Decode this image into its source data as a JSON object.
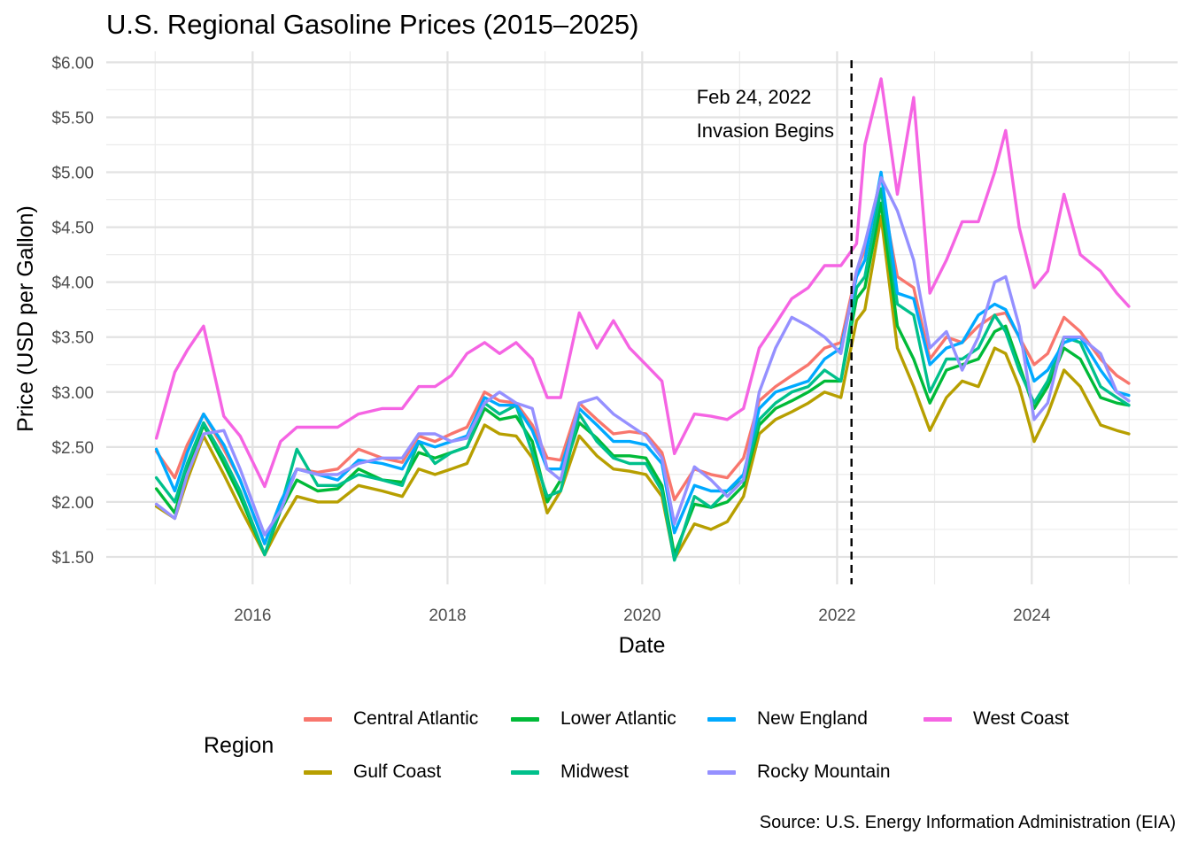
{
  "chart_data": {
    "type": "line",
    "title": "U.S. Regional Gasoline Prices (2015–2025)",
    "xlabel": "Date",
    "ylabel": "Price (USD per Gallon)",
    "caption": "Source: U.S. Energy Information Administration (EIA)",
    "legend_title": "Region",
    "legend_position": "bottom",
    "grid": true,
    "xlim": [
      "2014-07-01",
      "2025-07-01"
    ],
    "ylim": [
      1.25,
      6.1
    ],
    "x_ticks": [
      "2016-01-01",
      "2018-01-01",
      "2020-01-01",
      "2022-01-01",
      "2024-01-01"
    ],
    "x_tick_labels": [
      "2016",
      "2018",
      "2020",
      "2022",
      "2024"
    ],
    "y_ticks": [
      1.5,
      2.0,
      2.5,
      3.0,
      3.5,
      4.0,
      4.5,
      5.0,
      5.5,
      6.0
    ],
    "y_tick_labels": [
      "$1.50",
      "$2.00",
      "$2.50",
      "$3.00",
      "$3.50",
      "$4.00",
      "$4.50",
      "$5.00",
      "$5.50",
      "$6.00"
    ],
    "annotation": {
      "date": "2022-02-24",
      "line_style": "dashed",
      "label_line1": "Feb 24, 2022",
      "label_line2": "Invasion Begins"
    },
    "x": [
      "2015-01-05",
      "2015-03-15",
      "2015-05-01",
      "2015-07-01",
      "2015-09-15",
      "2015-11-15",
      "2016-02-15",
      "2016-04-15",
      "2016-06-15",
      "2016-09-01",
      "2016-11-15",
      "2017-02-01",
      "2017-05-01",
      "2017-07-15",
      "2017-09-15",
      "2017-11-15",
      "2018-01-15",
      "2018-03-15",
      "2018-05-20",
      "2018-07-15",
      "2018-09-15",
      "2018-11-15",
      "2019-01-10",
      "2019-03-01",
      "2019-05-10",
      "2019-07-15",
      "2019-09-15",
      "2019-11-15",
      "2020-01-15",
      "2020-03-15",
      "2020-05-01",
      "2020-07-15",
      "2020-09-15",
      "2020-11-15",
      "2021-01-15",
      "2021-03-15",
      "2021-05-15",
      "2021-07-15",
      "2021-09-15",
      "2021-11-15",
      "2022-01-15",
      "2022-03-15",
      "2022-04-15",
      "2022-06-15",
      "2022-08-15",
      "2022-10-15",
      "2022-12-15",
      "2023-02-15",
      "2023-04-15",
      "2023-06-15",
      "2023-08-15",
      "2023-09-25",
      "2023-11-15",
      "2024-01-10",
      "2024-03-01",
      "2024-05-01",
      "2024-07-01",
      "2024-09-15",
      "2024-11-15",
      "2024-12-30"
    ],
    "series": [
      {
        "name": "Central Atlantic",
        "color": "#F8766D",
        "values": [
          2.46,
          2.22,
          2.52,
          2.8,
          2.48,
          2.2,
          1.62,
          2.0,
          2.3,
          2.27,
          2.3,
          2.48,
          2.4,
          2.36,
          2.6,
          2.55,
          2.62,
          2.68,
          3.0,
          2.92,
          2.9,
          2.7,
          2.4,
          2.38,
          2.9,
          2.75,
          2.62,
          2.64,
          2.62,
          2.45,
          2.02,
          2.3,
          2.25,
          2.22,
          2.4,
          2.92,
          3.05,
          3.15,
          3.25,
          3.4,
          3.45,
          4.1,
          4.3,
          4.85,
          4.05,
          3.95,
          3.3,
          3.5,
          3.45,
          3.6,
          3.7,
          3.72,
          3.5,
          3.25,
          3.35,
          3.68,
          3.55,
          3.3,
          3.15,
          3.08
        ]
      },
      {
        "name": "Gulf Coast",
        "color": "#B79F00",
        "values": [
          1.96,
          1.85,
          2.2,
          2.6,
          2.25,
          1.95,
          1.52,
          1.8,
          2.05,
          2.0,
          2.0,
          2.15,
          2.1,
          2.05,
          2.3,
          2.25,
          2.3,
          2.35,
          2.7,
          2.62,
          2.6,
          2.4,
          1.9,
          2.1,
          2.6,
          2.42,
          2.3,
          2.28,
          2.25,
          2.05,
          1.48,
          1.8,
          1.75,
          1.82,
          2.05,
          2.62,
          2.75,
          2.82,
          2.9,
          3.0,
          2.95,
          3.65,
          3.75,
          4.6,
          3.4,
          3.05,
          2.65,
          2.95,
          3.1,
          3.05,
          3.4,
          3.35,
          3.05,
          2.55,
          2.8,
          3.2,
          3.05,
          2.7,
          2.65,
          2.62
        ]
      },
      {
        "name": "Lower Atlantic",
        "color": "#00BA38",
        "values": [
          2.12,
          1.9,
          2.3,
          2.7,
          2.35,
          2.05,
          1.52,
          1.92,
          2.2,
          2.1,
          2.12,
          2.3,
          2.2,
          2.18,
          2.45,
          2.4,
          2.45,
          2.5,
          2.85,
          2.75,
          2.78,
          2.55,
          2.0,
          2.2,
          2.72,
          2.58,
          2.42,
          2.42,
          2.4,
          2.15,
          1.52,
          1.98,
          1.95,
          2.0,
          2.15,
          2.7,
          2.85,
          2.92,
          3.0,
          3.1,
          3.1,
          3.85,
          3.95,
          4.72,
          3.6,
          3.3,
          2.9,
          3.2,
          3.25,
          3.3,
          3.55,
          3.6,
          3.25,
          2.85,
          3.05,
          3.4,
          3.3,
          2.95,
          2.9,
          2.88
        ]
      },
      {
        "name": "Midwest",
        "color": "#00C08B",
        "values": [
          2.22,
          2.0,
          2.35,
          2.72,
          2.4,
          2.1,
          1.52,
          1.95,
          2.48,
          2.15,
          2.15,
          2.25,
          2.2,
          2.15,
          2.55,
          2.35,
          2.45,
          2.5,
          2.9,
          2.8,
          2.88,
          2.45,
          2.05,
          2.1,
          2.8,
          2.55,
          2.4,
          2.35,
          2.35,
          2.1,
          1.47,
          2.05,
          1.95,
          2.1,
          2.2,
          2.75,
          2.9,
          3.0,
          3.05,
          3.2,
          3.1,
          3.95,
          4.05,
          4.85,
          3.8,
          3.7,
          3.0,
          3.3,
          3.3,
          3.4,
          3.7,
          3.55,
          3.2,
          2.9,
          3.1,
          3.5,
          3.45,
          3.05,
          2.95,
          2.88
        ]
      },
      {
        "name": "New England",
        "color": "#00A9FF",
        "values": [
          2.48,
          2.1,
          2.45,
          2.8,
          2.52,
          2.2,
          1.62,
          2.0,
          2.3,
          2.25,
          2.2,
          2.38,
          2.35,
          2.3,
          2.55,
          2.5,
          2.55,
          2.6,
          2.95,
          2.88,
          2.88,
          2.65,
          2.3,
          2.3,
          2.85,
          2.7,
          2.55,
          2.55,
          2.52,
          2.35,
          1.72,
          2.15,
          2.1,
          2.1,
          2.25,
          2.85,
          3.0,
          3.05,
          3.1,
          3.3,
          3.4,
          4.05,
          4.2,
          5.0,
          3.9,
          3.85,
          3.25,
          3.4,
          3.45,
          3.7,
          3.8,
          3.75,
          3.5,
          3.1,
          3.2,
          3.45,
          3.5,
          3.2,
          3.0,
          2.97
        ]
      },
      {
        "name": "Rocky Mountain",
        "color": "#9590FF",
        "values": [
          1.98,
          1.85,
          2.25,
          2.62,
          2.65,
          2.3,
          1.7,
          1.92,
          2.3,
          2.25,
          2.25,
          2.35,
          2.4,
          2.4,
          2.62,
          2.62,
          2.55,
          2.58,
          2.9,
          3.0,
          2.9,
          2.85,
          2.3,
          2.2,
          2.9,
          2.95,
          2.8,
          2.7,
          2.6,
          2.4,
          1.8,
          2.32,
          2.2,
          2.05,
          2.2,
          3.0,
          3.4,
          3.68,
          3.6,
          3.5,
          3.35,
          4.1,
          4.35,
          4.95,
          4.65,
          4.2,
          3.4,
          3.55,
          3.2,
          3.5,
          4.0,
          4.05,
          3.6,
          2.75,
          2.9,
          3.5,
          3.5,
          3.35,
          3.0,
          2.92
        ]
      },
      {
        "name": "West Coast",
        "color": "#F564E3",
        "values": [
          2.58,
          3.18,
          3.38,
          3.6,
          2.78,
          2.6,
          2.14,
          2.55,
          2.68,
          2.68,
          2.68,
          2.8,
          2.85,
          2.85,
          3.05,
          3.05,
          3.15,
          3.35,
          3.45,
          3.35,
          3.45,
          3.3,
          2.95,
          2.95,
          3.72,
          3.4,
          3.65,
          3.4,
          3.25,
          3.1,
          2.44,
          2.8,
          2.78,
          2.75,
          2.85,
          3.4,
          3.62,
          3.85,
          3.95,
          4.15,
          4.15,
          4.35,
          5.25,
          5.85,
          4.8,
          5.68,
          3.9,
          4.2,
          4.55,
          4.55,
          5.0,
          5.38,
          4.5,
          3.95,
          4.1,
          4.8,
          4.25,
          4.1,
          3.9,
          3.78
        ]
      }
    ]
  }
}
